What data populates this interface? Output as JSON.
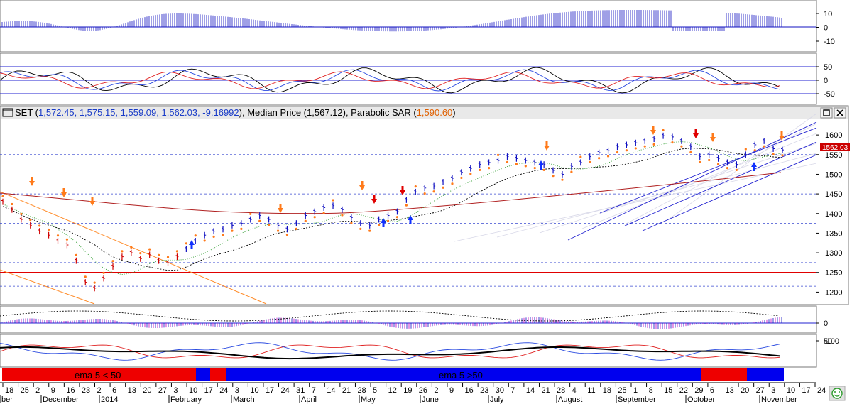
{
  "chart_data": {
    "type": "line",
    "symbol": "SET",
    "legend": {
      "prefix": "SET (",
      "ohlc": "1,572.45, 1,575.15, 1,559.09, 1,562.03, -9.16992",
      "median_label": "), Median Price (",
      "median_value": "1,567.12",
      "sar_label": "), Parabolic SAR (",
      "sar_value": "1,590.60",
      "suffix": ")"
    },
    "last_price_tag": "1562.03",
    "price_axis": {
      "ylim": [
        1170,
        1640
      ],
      "ticks": [
        "1600",
        "1550",
        "1500",
        "1450",
        "1400",
        "1350",
        "1300",
        "1250",
        "1200"
      ]
    },
    "close_series": [
      1430,
      1410,
      1385,
      1370,
      1355,
      1345,
      1330,
      1320,
      1280,
      1225,
      1210,
      1235,
      1265,
      1290,
      1300,
      1285,
      1295,
      1280,
      1275,
      1290,
      1310,
      1330,
      1345,
      1355,
      1360,
      1370,
      1375,
      1385,
      1395,
      1385,
      1370,
      1360,
      1375,
      1395,
      1405,
      1415,
      1420,
      1410,
      1390,
      1375,
      1370,
      1385,
      1395,
      1405,
      1435,
      1455,
      1465,
      1470,
      1480,
      1490,
      1505,
      1515,
      1525,
      1530,
      1535,
      1545,
      1540,
      1535,
      1530,
      1525,
      1510,
      1500,
      1520,
      1530,
      1545,
      1555,
      1560,
      1570,
      1575,
      1580,
      1585,
      1590,
      1598,
      1595,
      1585,
      1570,
      1545,
      1550,
      1540,
      1530,
      1525,
      1550,
      1575,
      1585,
      1565,
      1562
    ],
    "top_panel": {
      "ticks": [
        "10",
        "0",
        "-10"
      ]
    },
    "second_panel": {
      "ticks": [
        "50",
        "0",
        "-50"
      ]
    },
    "fourth_panel": {
      "ticks": [
        "0",
        "-100"
      ]
    },
    "fifth_panel": {
      "ticks": [
        "50"
      ]
    },
    "regime_bands": [
      {
        "label": "ema 5 < 50",
        "color": "#ee0000"
      },
      {
        "label": "ema 5 >50",
        "color": "#0000ee"
      }
    ],
    "x_axis": {
      "day_labels": [
        "18",
        "25",
        "2",
        "9",
        "16",
        "23",
        "2",
        "6",
        "13",
        "20",
        "27",
        "3",
        "10",
        "17",
        "24",
        "3",
        "10",
        "17",
        "24",
        "31",
        "7",
        "14",
        "21",
        "28",
        "5",
        "12",
        "19",
        "26",
        "2",
        "9",
        "16",
        "23",
        "30",
        "7",
        "14",
        "21",
        "28",
        "4",
        "11",
        "18",
        "25",
        "1",
        "8",
        "15",
        "22",
        "29",
        "6",
        "13",
        "20",
        "27",
        "3",
        "10",
        "17",
        "24"
      ],
      "month_labels": [
        "ber",
        "December",
        "2014",
        "February",
        "March",
        "April",
        "May",
        "June",
        "July",
        "August",
        "September",
        "October",
        "November"
      ]
    }
  }
}
